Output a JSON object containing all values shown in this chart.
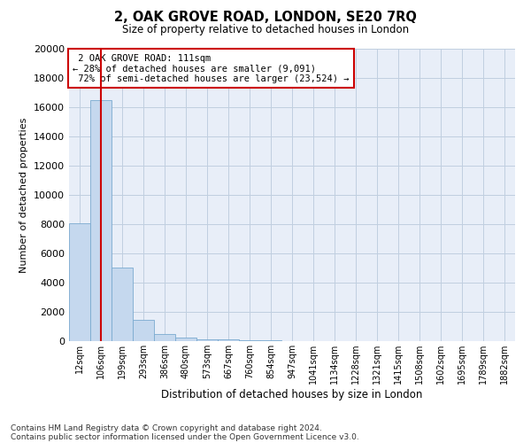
{
  "title_line1": "2, OAK GROVE ROAD, LONDON, SE20 7RQ",
  "title_line2": "Size of property relative to detached houses in London",
  "xlabel": "Distribution of detached houses by size in London",
  "ylabel": "Number of detached properties",
  "bar_color": "#c5d8ee",
  "bar_edge_color": "#7aaad0",
  "background_color": "#e8eef8",
  "grid_color": "#c0cfe0",
  "annotation_box_color": "#ffffff",
  "annotation_border_color": "#cc0000",
  "redline_color": "#cc0000",
  "categories": [
    "12sqm",
    "106sqm",
    "199sqm",
    "293sqm",
    "386sqm",
    "480sqm",
    "573sqm",
    "667sqm",
    "760sqm",
    "854sqm",
    "947sqm",
    "1041sqm",
    "1134sqm",
    "1228sqm",
    "1321sqm",
    "1415sqm",
    "1508sqm",
    "1602sqm",
    "1695sqm",
    "1789sqm",
    "1882sqm"
  ],
  "values": [
    8050,
    16500,
    5050,
    1450,
    480,
    230,
    150,
    100,
    50,
    50,
    15,
    8,
    5,
    3,
    2,
    1,
    1,
    0,
    0,
    0,
    0
  ],
  "property_label": "2 OAK GROVE ROAD: 111sqm",
  "pct_smaller": "28%",
  "n_smaller": "9,091",
  "pct_larger": "72%",
  "n_larger": "23,524",
  "redline_x": 1,
  "ylim": [
    0,
    20000
  ],
  "yticks": [
    0,
    2000,
    4000,
    6000,
    8000,
    10000,
    12000,
    14000,
    16000,
    18000,
    20000
  ],
  "footnote1": "Contains HM Land Registry data © Crown copyright and database right 2024.",
  "footnote2": "Contains public sector information licensed under the Open Government Licence v3.0."
}
